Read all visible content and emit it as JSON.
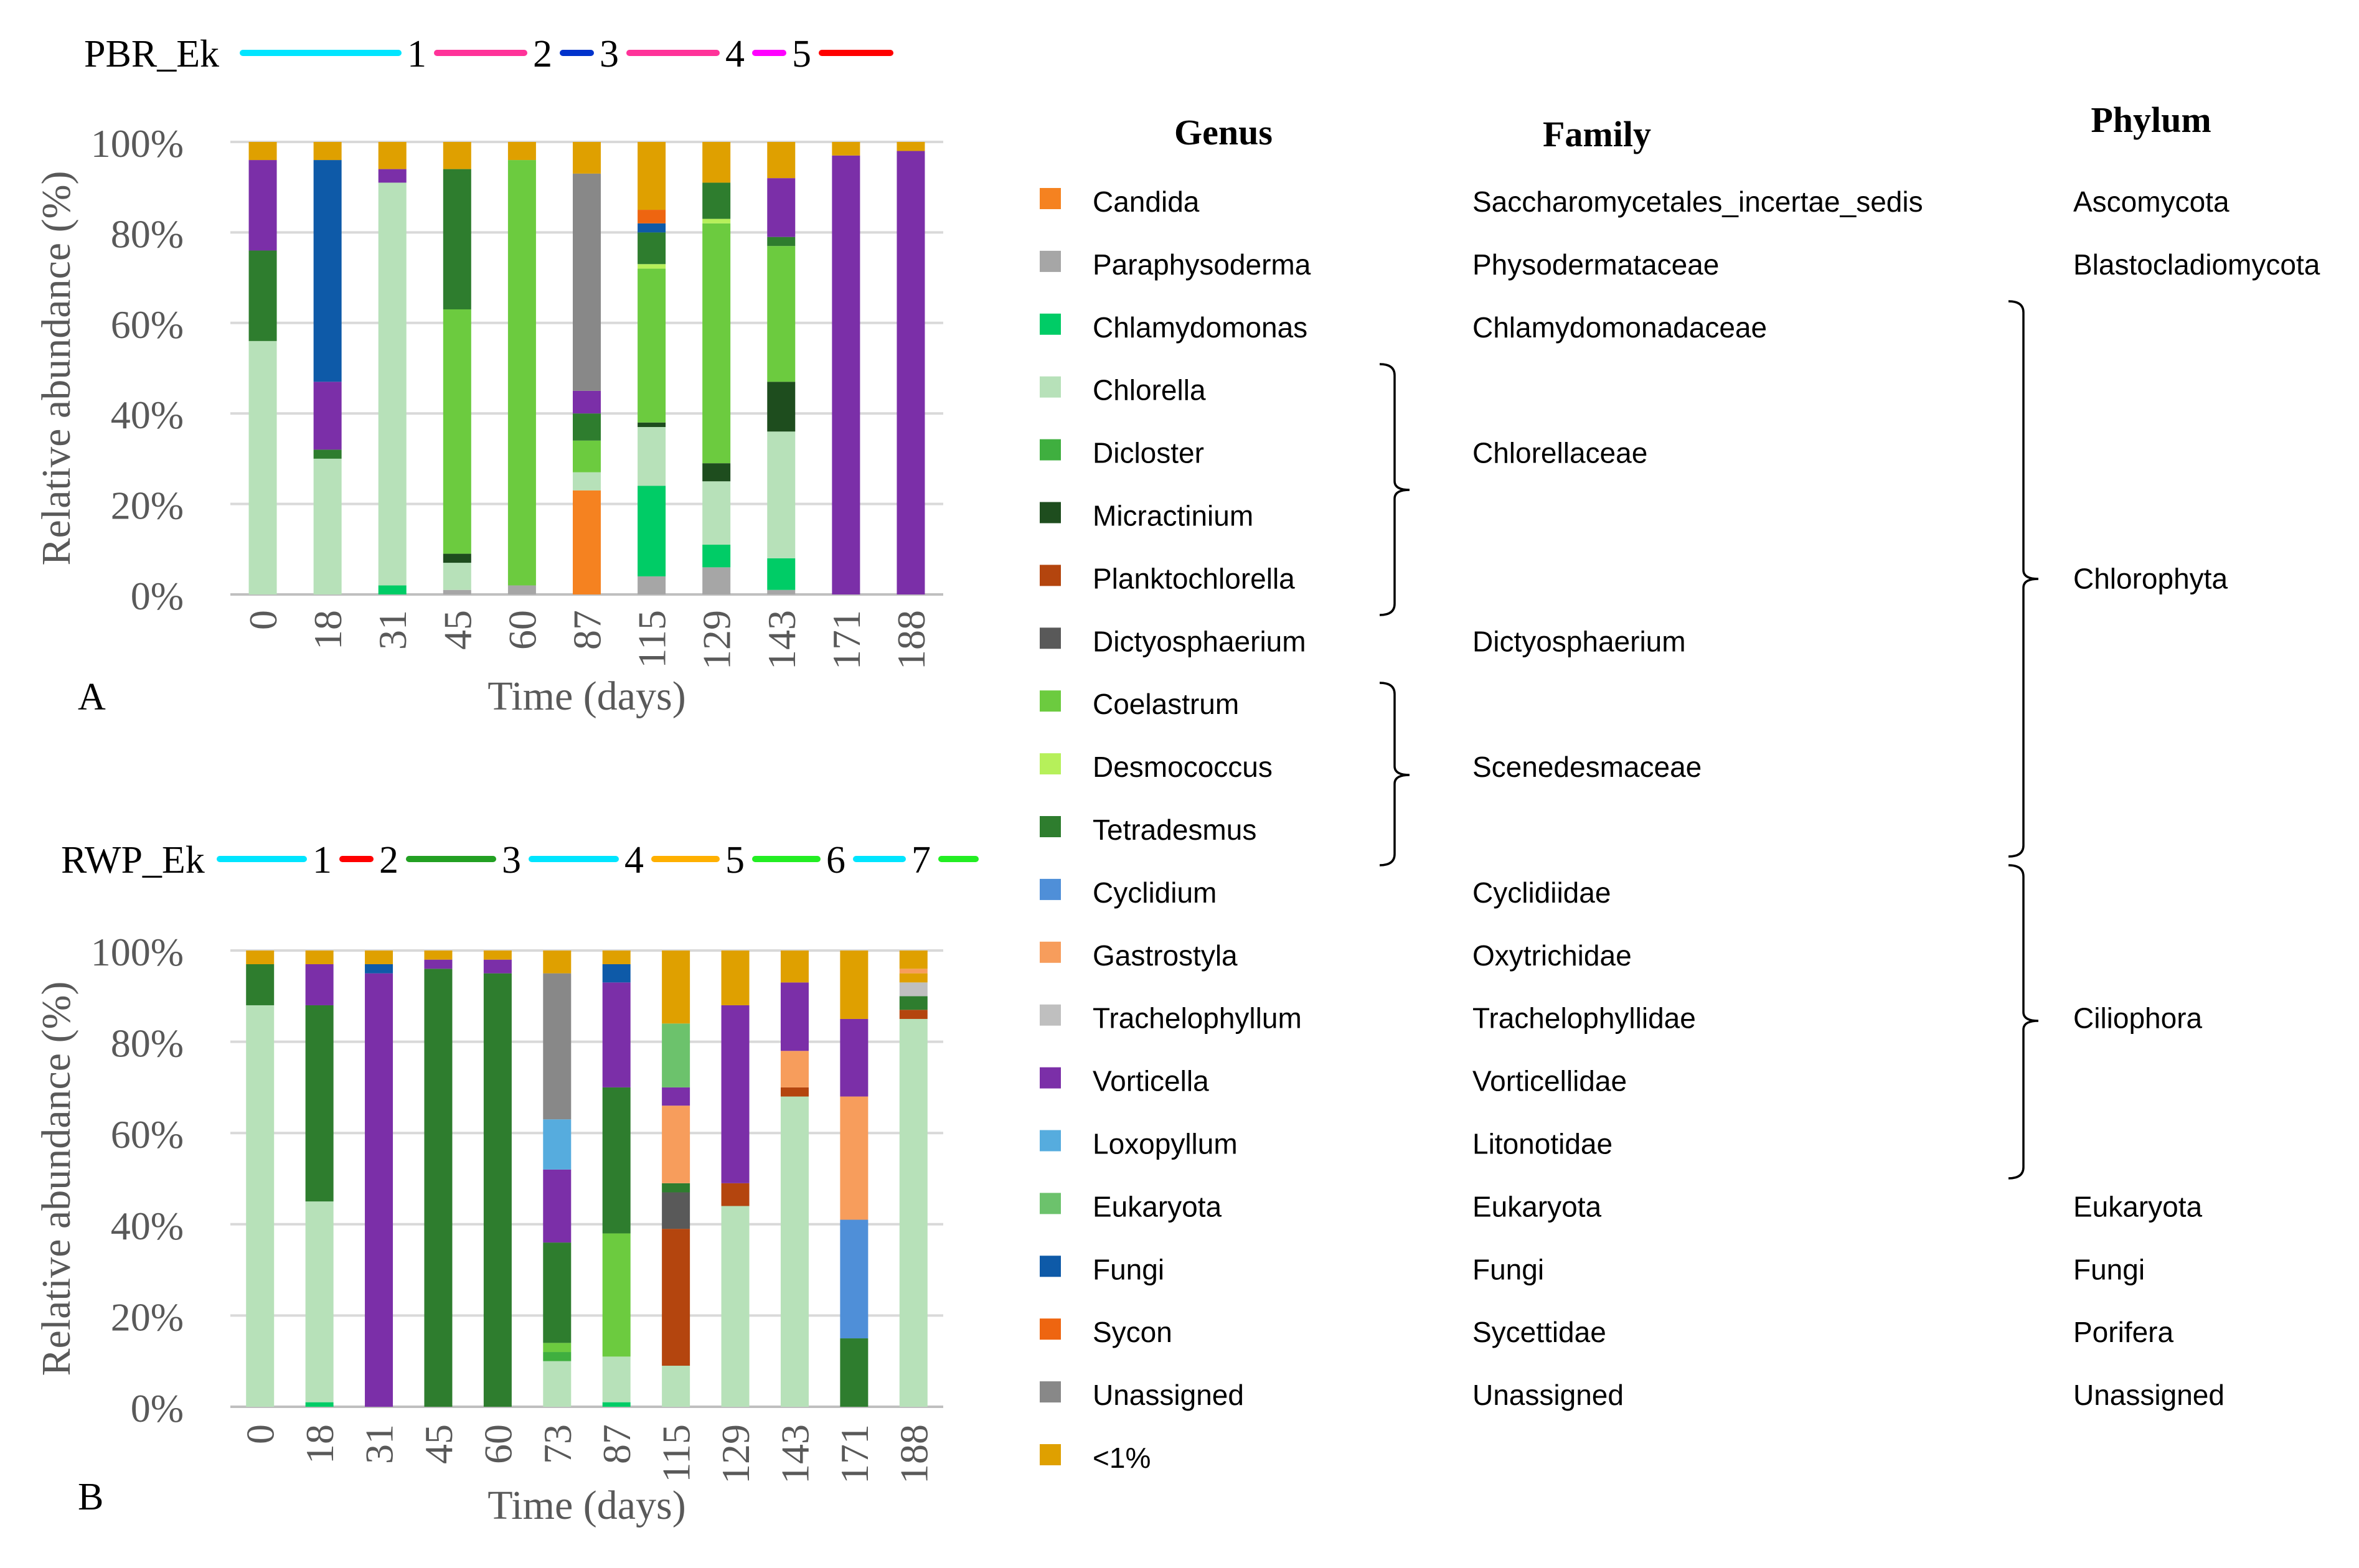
{
  "colors": {
    "Candida": "#F58220",
    "Paraphysoderma": "#A6A6A6",
    "Chlamydomonas": "#00CC66",
    "Chlorella": "#B7E1B9",
    "Dicloster": "#3FAF3F",
    "Micractinium": "#1E4D1E",
    "Planktochlorella": "#B4450E",
    "Dictyosphaerium": "#595959",
    "Coelastrum": "#6CCB3F",
    "Desmococcus": "#B6F05A",
    "Tetradesmus": "#2E7D2E",
    "Cyclidium": "#4F8FD8",
    "Gastrostyla": "#F79D5C",
    "Trachelophyllum": "#BFBFBF",
    "Vorticella": "#7B2FA8",
    "Loxopyllum": "#56ACDE",
    "Eukaryota": "#6CC26C",
    "Fungi": "#0E5AA8",
    "Sycon": "#EE6510",
    "Unassigned": "#888888",
    "<1%": "#DFA000"
  },
  "chart_data": [
    {
      "type": "bar",
      "stacked": true,
      "panel_letter": "A",
      "legend_title": "PBR_Ek",
      "legend_entries": [
        {
          "label": "1",
          "color": "#00E5FF"
        },
        {
          "label": "2",
          "color": "#FF3399"
        },
        {
          "label": "3",
          "color": "#0033CC"
        },
        {
          "label": "4",
          "color": "#FF3399"
        },
        {
          "label": "5",
          "color": "#FF00FF"
        },
        {
          "label": "",
          "color": "#FF0000"
        }
      ],
      "xlabel": "Time (days)",
      "ylabel": "Relative abundance (%)",
      "yticks": [
        "0%",
        "20%",
        "40%",
        "60%",
        "80%",
        "100%"
      ],
      "ylim": [
        0,
        100
      ],
      "grid": true,
      "categories": [
        "0",
        "18",
        "31",
        "45",
        "60",
        "87",
        "115",
        "129",
        "143",
        "171",
        "188"
      ],
      "stacks": [
        [
          [
            "Chlorella",
            56
          ],
          [
            "Tetradesmus",
            20
          ],
          [
            "Vorticella",
            20
          ],
          [
            "<1%",
            4
          ]
        ],
        [
          [
            "Chlorella",
            30
          ],
          [
            "Tetradesmus",
            2
          ],
          [
            "Vorticella",
            15
          ],
          [
            "Fungi",
            49
          ],
          [
            "<1%",
            4
          ]
        ],
        [
          [
            "Chlamydomonas",
            2
          ],
          [
            "Chlorella",
            89
          ],
          [
            "Vorticella",
            3
          ],
          [
            "<1%",
            6
          ]
        ],
        [
          [
            "Paraphysoderma",
            1
          ],
          [
            "Chlorella",
            6
          ],
          [
            "Micractinium",
            2
          ],
          [
            "Coelastrum",
            54
          ],
          [
            "Tetradesmus",
            31
          ],
          [
            "<1%",
            6
          ]
        ],
        [
          [
            "Paraphysoderma",
            2
          ],
          [
            "Coelastrum",
            94
          ],
          [
            "<1%",
            4
          ]
        ],
        [
          [
            "Candida",
            23
          ],
          [
            "Chlorella",
            4
          ],
          [
            "Coelastrum",
            7
          ],
          [
            "Tetradesmus",
            6
          ],
          [
            "Vorticella",
            5
          ],
          [
            "Unassigned",
            48
          ],
          [
            "<1%",
            7
          ]
        ],
        [
          [
            "Paraphysoderma",
            4
          ],
          [
            "Chlamydomonas",
            20
          ],
          [
            "Chlorella",
            13
          ],
          [
            "Micractinium",
            1
          ],
          [
            "Coelastrum",
            34
          ],
          [
            "Desmococcus",
            1
          ],
          [
            "Tetradesmus",
            7
          ],
          [
            "Fungi",
            2
          ],
          [
            "Sycon",
            3
          ],
          [
            "<1%",
            15
          ]
        ],
        [
          [
            "Paraphysoderma",
            6
          ],
          [
            "Chlamydomonas",
            5
          ],
          [
            "Chlorella",
            14
          ],
          [
            "Micractinium",
            4
          ],
          [
            "Coelastrum",
            53
          ],
          [
            "Desmococcus",
            1
          ],
          [
            "Tetradesmus",
            8
          ],
          [
            "<1%",
            9
          ]
        ],
        [
          [
            "Paraphysoderma",
            1
          ],
          [
            "Chlamydomonas",
            7
          ],
          [
            "Chlorella",
            28
          ],
          [
            "Micractinium",
            11
          ],
          [
            "Coelastrum",
            30
          ],
          [
            "Tetradesmus",
            2
          ],
          [
            "Vorticella",
            13
          ],
          [
            "<1%",
            8
          ]
        ],
        [
          [
            "Vorticella",
            97
          ],
          [
            "<1%",
            3
          ]
        ],
        [
          [
            "Vorticella",
            98
          ],
          [
            "<1%",
            2
          ]
        ]
      ]
    },
    {
      "type": "bar",
      "stacked": true,
      "panel_letter": "B",
      "legend_title": "RWP_Ek",
      "legend_entries": [
        {
          "label": "1",
          "color": "#00E5FF"
        },
        {
          "label": "2",
          "color": "#FF0000"
        },
        {
          "label": "3",
          "color": "#22A022"
        },
        {
          "label": "4",
          "color": "#00E5FF"
        },
        {
          "label": "5",
          "color": "#FFB000"
        },
        {
          "label": "6",
          "color": "#22EE22"
        },
        {
          "label": "7",
          "color": "#00E5FF"
        },
        {
          "label": "",
          "color": "#22EE22"
        }
      ],
      "xlabel": "Time (days)",
      "ylabel": "Relative abundance (%)",
      "yticks": [
        "0%",
        "20%",
        "40%",
        "60%",
        "80%",
        "100%"
      ],
      "ylim": [
        0,
        100
      ],
      "grid": true,
      "categories": [
        "0",
        "18",
        "31",
        "45",
        "60",
        "73",
        "87",
        "115",
        "129",
        "143",
        "171",
        "188"
      ],
      "stacks": [
        [
          [
            "Chlorella",
            88
          ],
          [
            "Tetradesmus",
            9
          ],
          [
            "<1%",
            3
          ]
        ],
        [
          [
            "Chlamydomonas",
            1
          ],
          [
            "Chlorella",
            44
          ],
          [
            "Tetradesmus",
            43
          ],
          [
            "Vorticella",
            9
          ],
          [
            "<1%",
            3
          ]
        ],
        [
          [
            "Vorticella",
            95
          ],
          [
            "Fungi",
            2
          ],
          [
            "<1%",
            3
          ]
        ],
        [
          [
            "Tetradesmus",
            96
          ],
          [
            "Vorticella",
            2
          ],
          [
            "<1%",
            2
          ]
        ],
        [
          [
            "Tetradesmus",
            95
          ],
          [
            "Vorticella",
            3
          ],
          [
            "<1%",
            2
          ]
        ],
        [
          [
            "Chlorella",
            10
          ],
          [
            "Dicloster",
            2
          ],
          [
            "Coelastrum",
            2
          ],
          [
            "Tetradesmus",
            22
          ],
          [
            "Vorticella",
            16
          ],
          [
            "Loxopyllum",
            11
          ],
          [
            "Unassigned",
            32
          ],
          [
            "<1%",
            5
          ]
        ],
        [
          [
            "Chlamydomonas",
            1
          ],
          [
            "Chlorella",
            10
          ],
          [
            "Coelastrum",
            27
          ],
          [
            "Tetradesmus",
            32
          ],
          [
            "Vorticella",
            23
          ],
          [
            "Fungi",
            4
          ],
          [
            "<1%",
            3
          ]
        ],
        [
          [
            "Chlorella",
            9
          ],
          [
            "Planktochlorella",
            30
          ],
          [
            "Dictyosphaerium",
            8
          ],
          [
            "Tetradesmus",
            2
          ],
          [
            "Gastrostyla",
            17
          ],
          [
            "Vorticella",
            4
          ],
          [
            "Eukaryota",
            14
          ],
          [
            "<1%",
            16
          ]
        ],
        [
          [
            "Chlorella",
            44
          ],
          [
            "Planktochlorella",
            5
          ],
          [
            "Vorticella",
            39
          ],
          [
            "<1%",
            12
          ]
        ],
        [
          [
            "Chlorella",
            68
          ],
          [
            "Planktochlorella",
            2
          ],
          [
            "Gastrostyla",
            8
          ],
          [
            "Vorticella",
            15
          ],
          [
            "<1%",
            7
          ]
        ],
        [
          [
            "Tetradesmus",
            15
          ],
          [
            "Cyclidium",
            26
          ],
          [
            "Gastrostyla",
            27
          ],
          [
            "Vorticella",
            17
          ],
          [
            "<1%",
            15
          ]
        ],
        [
          [
            "Chlorella",
            85
          ],
          [
            "Planktochlorella",
            2
          ],
          [
            "Tetradesmus",
            3
          ],
          [
            "Trachelophyllum",
            3
          ],
          [
            "<1%",
            2
          ],
          [
            "Gastrostyla",
            1
          ],
          [
            "<1%",
            4
          ]
        ]
      ]
    }
  ],
  "taxonomy_table": {
    "headers": {
      "genus": "Genus",
      "family": "Family",
      "phylum": "Phylum"
    },
    "rows": [
      {
        "genus": "Candida",
        "family": "Saccharomycetales_incertae_sedis",
        "phylum": "Ascomycota"
      },
      {
        "genus": "Paraphysoderma",
        "family": "Physodermataceae",
        "phylum": "Blastocladiomycota"
      },
      {
        "genus": "Chlamydomonas",
        "family": "Chlamydomonadaceae",
        "phylum": ""
      },
      {
        "genus": "Chlorella",
        "family": "",
        "phylum": ""
      },
      {
        "genus": "Dicloster",
        "family": "Chlorellaceae",
        "phylum": ""
      },
      {
        "genus": "Micractinium",
        "family": "",
        "phylum": ""
      },
      {
        "genus": "Planktochlorella",
        "family": "",
        "phylum": "Chlorophyta"
      },
      {
        "genus": "Dictyosphaerium",
        "family": "Dictyosphaerium",
        "phylum": ""
      },
      {
        "genus": "Coelastrum",
        "family": "",
        "phylum": ""
      },
      {
        "genus": "Desmococcus",
        "family": "Scenedesmaceae",
        "phylum": ""
      },
      {
        "genus": "Tetradesmus",
        "family": "",
        "phylum": ""
      },
      {
        "genus": "Cyclidium",
        "family": "Cyclidiidae",
        "phylum": ""
      },
      {
        "genus": "Gastrostyla",
        "family": "Oxytrichidae",
        "phylum": ""
      },
      {
        "genus": "Trachelophyllum",
        "family": "Trachelophyllidae",
        "phylum": "Ciliophora"
      },
      {
        "genus": "Vorticella",
        "family": "Vorticellidae",
        "phylum": ""
      },
      {
        "genus": "Loxopyllum",
        "family": "Litonotidae",
        "phylum": ""
      },
      {
        "genus": "Eukaryota",
        "family": "Eukaryota",
        "phylum": "Eukaryota"
      },
      {
        "genus": "Fungi",
        "family": "Fungi",
        "phylum": "Fungi"
      },
      {
        "genus": "Sycon",
        "family": "Sycettidae",
        "phylum": "Porifera"
      },
      {
        "genus": "Unassigned",
        "family": "Unassigned",
        "phylum": "Unassigned"
      },
      {
        "genus": "<1%",
        "family": "",
        "phylum": ""
      }
    ]
  }
}
